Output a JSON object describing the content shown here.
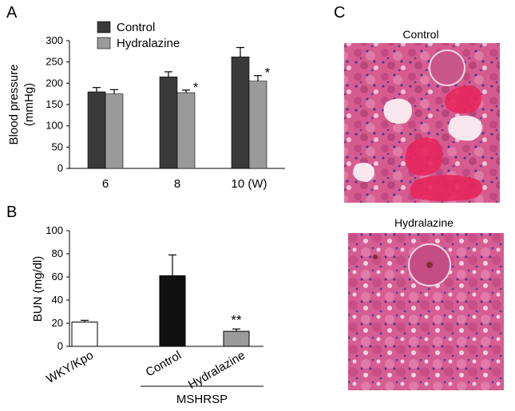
{
  "panels": {
    "a": {
      "letter": "A"
    },
    "b": {
      "letter": "B"
    },
    "c": {
      "letter": "C",
      "top_title": "Control",
      "bottom_title": "Hydralazine"
    }
  },
  "chart_data": [
    {
      "type": "bar",
      "panel": "A",
      "ylabel": "Blood pressure\n(mmHg)",
      "ylim": [
        0,
        300
      ],
      "yticks": [
        "0",
        "50",
        "100",
        "150",
        "200",
        "250",
        "300"
      ],
      "categories": [
        "6",
        "8",
        "10 (W)"
      ],
      "legend": "top-left",
      "series": [
        {
          "name": "Control",
          "color": "#3a3a3a",
          "values": [
            180,
            215,
            262
          ],
          "errors": [
            10,
            12,
            22
          ],
          "marks": [
            "",
            "",
            ""
          ]
        },
        {
          "name": "Hydralazine",
          "color": "#9a9a9a",
          "values": [
            175,
            178,
            205
          ],
          "errors": [
            10,
            6,
            13
          ],
          "marks": [
            "",
            "*",
            "*"
          ]
        }
      ]
    },
    {
      "type": "bar",
      "panel": "B",
      "ylabel": "BUN (mg/dl)",
      "ylim": [
        0,
        100
      ],
      "yticks": [
        "0",
        "20",
        "40",
        "60",
        "80",
        "100"
      ],
      "categories": [
        "WKY/Kpo",
        "Control",
        "Hydralazine"
      ],
      "group_label": "MSHRSP",
      "values": [
        21,
        61,
        13
      ],
      "errors": [
        1.5,
        18,
        2
      ],
      "colors": [
        "#ffffff",
        "#111111",
        "#9a9a9a"
      ],
      "marks": [
        "",
        "",
        "**"
      ]
    }
  ]
}
